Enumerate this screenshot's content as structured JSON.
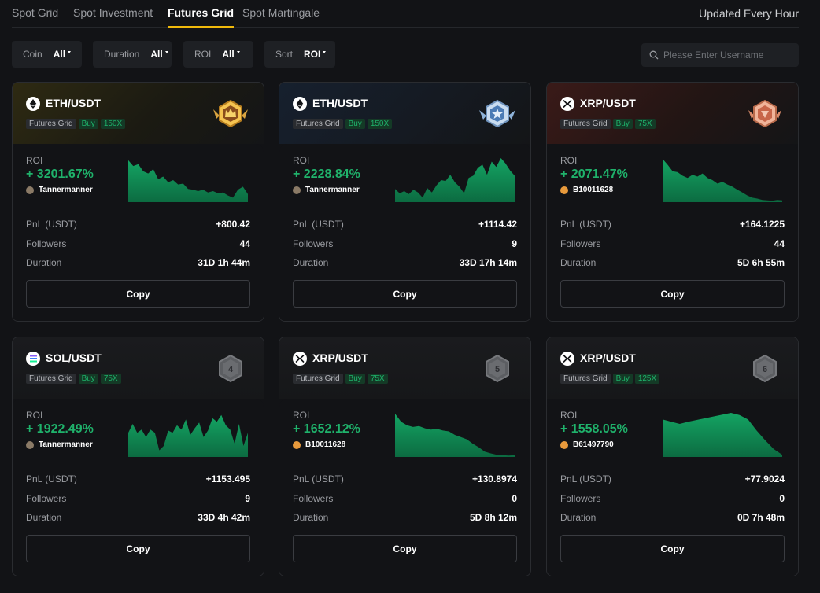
{
  "tabs": [
    "Spot Grid",
    "Spot Investment",
    "Futures Grid",
    "Spot Martingale"
  ],
  "active_tab": 2,
  "updated": "Updated Every Hour",
  "filters": {
    "coin": {
      "label": "Coin",
      "value": "All"
    },
    "duration": {
      "label": "Duration",
      "value": "All"
    },
    "roi": {
      "label": "ROI",
      "value": "All"
    },
    "sort": {
      "label": "Sort",
      "value": "ROI"
    }
  },
  "search": {
    "placeholder": "Please Enter Username"
  },
  "labels": {
    "roi": "ROI",
    "pnl": "PnL (USDT)",
    "followers": "Followers",
    "duration": "Duration",
    "copy": "Copy"
  },
  "colors": {
    "positive": "#1fb26b",
    "gold": "#f0b90b"
  },
  "cards": [
    {
      "pair": "ETH/USDT",
      "coin_icon": "eth-icon",
      "type": "Futures Grid",
      "side": "Buy",
      "leverage": "150X",
      "rank_badge": "gold-crown-badge",
      "roi": "+ 3201.67%",
      "user": "Tannermanner",
      "pnl": "+800.42",
      "followers": "44",
      "duration": "31D 1h 44m",
      "spark": [
        0.95,
        0.82,
        0.86,
        0.7,
        0.65,
        0.75,
        0.52,
        0.58,
        0.45,
        0.5,
        0.4,
        0.42,
        0.3,
        0.28,
        0.25,
        0.28,
        0.22,
        0.25,
        0.2,
        0.22,
        0.15,
        0.1,
        0.28,
        0.35,
        0.18
      ]
    },
    {
      "pair": "ETH/USDT",
      "coin_icon": "eth-icon",
      "type": "Futures Grid",
      "side": "Buy",
      "leverage": "150X",
      "rank_badge": "silver-star-badge",
      "roi": "+ 2228.84%",
      "user": "Tannermanner",
      "pnl": "+1114.42",
      "followers": "9",
      "duration": "33D 17h 14m",
      "spark": [
        0.3,
        0.2,
        0.25,
        0.18,
        0.28,
        0.22,
        0.1,
        0.32,
        0.22,
        0.38,
        0.5,
        0.48,
        0.62,
        0.45,
        0.35,
        0.2,
        0.55,
        0.6,
        0.78,
        0.85,
        0.62,
        0.92,
        0.8,
        1.0,
        0.88,
        0.72,
        0.6
      ]
    },
    {
      "pair": "XRP/USDT",
      "coin_icon": "xrp-icon",
      "type": "Futures Grid",
      "side": "Buy",
      "leverage": "75X",
      "rank_badge": "bronze-heart-badge",
      "roi": "+ 2071.47%",
      "user": "B10011628",
      "pnl": "+164.1225",
      "followers": "44",
      "duration": "5D 6h 55m",
      "spark": [
        0.98,
        0.85,
        0.7,
        0.68,
        0.6,
        0.55,
        0.62,
        0.58,
        0.65,
        0.55,
        0.5,
        0.42,
        0.46,
        0.4,
        0.35,
        0.28,
        0.22,
        0.15,
        0.1,
        0.08,
        0.05,
        0.04,
        0.03,
        0.05,
        0.04
      ]
    },
    {
      "pair": "SOL/USDT",
      "coin_icon": "sol-icon",
      "type": "Futures Grid",
      "side": "Buy",
      "leverage": "75X",
      "rank_badge": "rank-4-badge",
      "rank": "4",
      "roi": "+ 1922.49%",
      "user": "Tannermanner",
      "pnl": "+1153.495",
      "followers": "9",
      "duration": "33D 4h 42m",
      "spark": [
        0.55,
        0.75,
        0.55,
        0.62,
        0.45,
        0.62,
        0.55,
        0.15,
        0.25,
        0.6,
        0.55,
        0.72,
        0.62,
        0.85,
        0.5,
        0.65,
        0.78,
        0.45,
        0.6,
        0.88,
        0.8,
        0.95,
        0.72,
        0.62,
        0.3,
        0.75,
        0.25,
        0.55
      ]
    },
    {
      "pair": "XRP/USDT",
      "coin_icon": "xrp-icon",
      "type": "Futures Grid",
      "side": "Buy",
      "leverage": "75X",
      "rank_badge": "rank-5-badge",
      "rank": "5",
      "roi": "+ 1652.12%",
      "user": "B10011628",
      "pnl": "+130.8974",
      "followers": "0",
      "duration": "5D 8h 12m",
      "spark": [
        0.98,
        0.8,
        0.72,
        0.68,
        0.7,
        0.65,
        0.62,
        0.64,
        0.6,
        0.58,
        0.5,
        0.45,
        0.4,
        0.3,
        0.22,
        0.12,
        0.08,
        0.05,
        0.04,
        0.03,
        0.04
      ]
    },
    {
      "pair": "XRP/USDT",
      "coin_icon": "xrp-icon",
      "type": "Futures Grid",
      "side": "Buy",
      "leverage": "125X",
      "rank_badge": "rank-6-badge",
      "rank": "6",
      "roi": "+ 1558.05%",
      "user": "B61497790",
      "pnl": "+77.9024",
      "followers": "0",
      "duration": "0D 7h 48m",
      "spark": [
        0.85,
        0.8,
        0.75,
        0.8,
        0.84,
        0.88,
        0.92,
        0.96,
        1.0,
        0.95,
        0.85,
        0.6,
        0.38,
        0.18,
        0.05
      ]
    }
  ]
}
